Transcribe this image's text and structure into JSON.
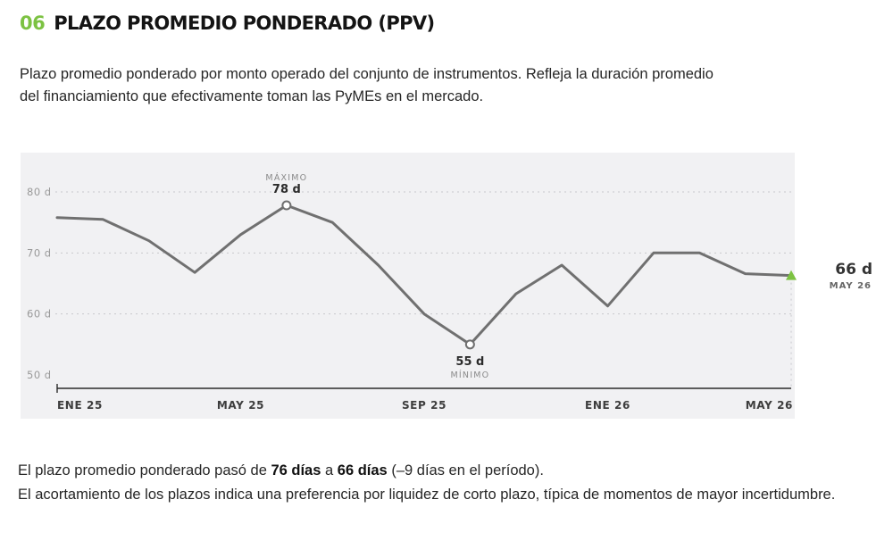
{
  "header": {
    "number": "06",
    "title": "PLAZO PROMEDIO PONDERADO (PPV)"
  },
  "intro": "Plazo promedio ponderado por monto operado del conjunto de instrumentos. Refleja la duración promedio del financiamiento que efectivamente toman las PyMEs en el mercado.",
  "colors": {
    "accent_green": "#7cc242",
    "line_gray": "#707070",
    "plot_bg": "#f1f1f3"
  },
  "chart_data": {
    "type": "line",
    "x": [
      "Ene 25",
      "Feb 25",
      "Mar 25",
      "Abr 25",
      "May 25",
      "Jun 25",
      "Jul 25",
      "Ago 25",
      "Sep 25",
      "Oct 25",
      "Nov 25",
      "Dic 25",
      "Ene 26",
      "Feb 26",
      "Mar 26",
      "Abr 26",
      "May 26"
    ],
    "series": [
      {
        "values": [
          75.8,
          75.5,
          72,
          66.8,
          73,
          77.8,
          75,
          68,
          60,
          55,
          63.3,
          68,
          61.3,
          70,
          70,
          66.6,
          66.3
        ]
      }
    ],
    "x_tick_labels": [
      {
        "index": 0,
        "label": "ENE 25"
      },
      {
        "index": 4,
        "label": "MAY 25"
      },
      {
        "index": 8,
        "label": "SEP 25"
      },
      {
        "index": 12,
        "label": "ENE 26"
      },
      {
        "index": 16,
        "label": "MAY 26"
      }
    ],
    "y_ticks": [
      {
        "value": 50,
        "label": "50 d"
      },
      {
        "value": 60,
        "label": "60 d"
      },
      {
        "value": 70,
        "label": "70 d"
      },
      {
        "value": 80,
        "label": "80 d"
      }
    ],
    "ylim": [
      48,
      85
    ],
    "grid": "dotted horizontal",
    "annotations": {
      "max": {
        "index": 5,
        "caption": "MÁXIMO",
        "value_label": "78 d"
      },
      "min": {
        "index": 9,
        "caption": "MÍNIMO",
        "value_label": "55 d"
      },
      "last": {
        "index": 16,
        "value_label": "66 d",
        "date_label": "MAY 26"
      }
    }
  },
  "summary": {
    "line1_pre": "El plazo promedio ponderado pasó de ",
    "from": "76 días",
    "line1_mid": " a ",
    "to": "66 días",
    "line1_post": " (–9 días en el período).",
    "line2": "El acortamiento de los plazos indica una preferencia por liquidez de corto plazo, típica de momentos de mayor incertidumbre."
  }
}
